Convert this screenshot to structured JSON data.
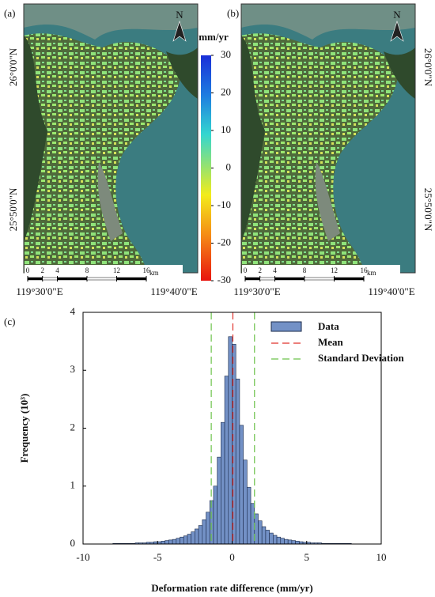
{
  "maps": {
    "panel_labels": [
      "(a)",
      "(b)"
    ],
    "north": "N",
    "lat_labels": [
      "26°0'0\"N",
      "25°50'0\"N"
    ],
    "lon_labels": [
      "119°30'0\"E",
      "119°40'0\"E"
    ],
    "scale_bar": {
      "ticks": [
        0,
        2,
        4,
        8,
        12,
        16
      ],
      "unit": "km"
    },
    "colorbar": {
      "label": "mm/yr",
      "lim": [
        -30,
        30
      ],
      "ticks": [
        30,
        20,
        10,
        0,
        -10,
        -20,
        -30
      ]
    }
  },
  "chart_data": {
    "type": "histogram",
    "panel_label": "(c)",
    "x_label": "Deformation rate difference (mm/yr)",
    "y_label": "Frequency (10³)",
    "bins": [
      -8,
      -7.75,
      -7.5,
      -7.25,
      -7,
      -6.75,
      -6.5,
      -6.25,
      -6,
      -5.75,
      -5.5,
      -5.25,
      -5,
      -4.75,
      -4.5,
      -4.25,
      -4,
      -3.75,
      -3.5,
      -3.25,
      -3,
      -2.75,
      -2.5,
      -2.25,
      -2,
      -1.75,
      -1.5,
      -1.25,
      -1,
      -0.75,
      -0.5,
      -0.25,
      0,
      0.25,
      0.5,
      0.75,
      1,
      1.25,
      1.5,
      1.75,
      2,
      2.25,
      2.5,
      2.75,
      3,
      3.25,
      3.5,
      3.75,
      4,
      4.25,
      4.5,
      4.75,
      5,
      5.25,
      5.5,
      5.75,
      6,
      6.25,
      6.5,
      6.75,
      7,
      7.25,
      7.5,
      7.75,
      8
    ],
    "values": [
      0.01,
      0.01,
      0.01,
      0.01,
      0.01,
      0.01,
      0.02,
      0.02,
      0.02,
      0.03,
      0.03,
      0.04,
      0.04,
      0.05,
      0.06,
      0.07,
      0.08,
      0.1,
      0.12,
      0.14,
      0.17,
      0.21,
      0.26,
      0.32,
      0.42,
      0.55,
      0.75,
      1.0,
      1.5,
      2.1,
      2.9,
      3.58,
      3.45,
      2.85,
      2.05,
      1.45,
      0.98,
      0.7,
      0.52,
      0.4,
      0.3,
      0.24,
      0.19,
      0.15,
      0.12,
      0.1,
      0.08,
      0.07,
      0.06,
      0.05,
      0.04,
      0.03,
      0.03,
      0.02,
      0.02,
      0.02,
      0.01,
      0.01,
      0.01,
      0.01,
      0.01,
      0.01,
      0.01,
      0.01
    ],
    "series_name": "Data",
    "color": "#7391c6",
    "mean": 0.05,
    "mean_name": "Mean",
    "mean_color": "#e0302a",
    "std_lines": [
      -1.4,
      1.5
    ],
    "std_name": "Standard Deviation",
    "std_color": "#6cc24a",
    "xlim": [
      -10,
      10
    ],
    "ylim": [
      0,
      4
    ],
    "xticks": [
      -10,
      -5,
      0,
      5,
      10
    ],
    "yticks": [
      0,
      1,
      2,
      3,
      4
    ]
  }
}
